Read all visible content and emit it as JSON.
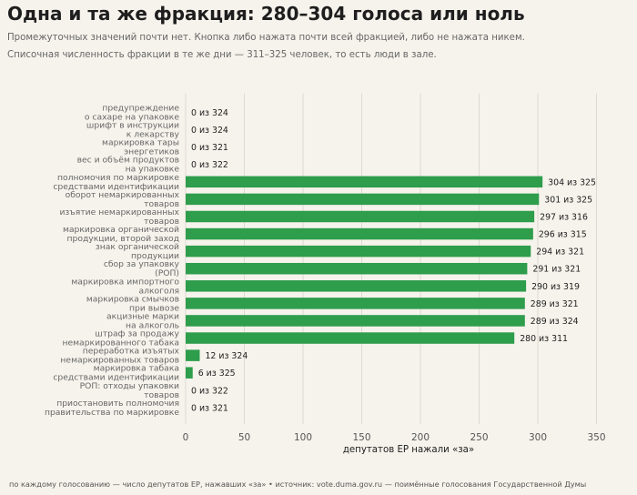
{
  "header": {
    "title": "Одна и та же фракция: 280–304 голоса или ноль",
    "subtitle_1": "Промежуточных значений почти нет. Кнопка либо нажата почти всей фракцией, либо не нажата никем.",
    "subtitle_2": "Списочная численность фракции в те же дни — 311–325 человек, то есть люди в зале."
  },
  "footer": {
    "source": "по каждому голосованию — число депутатов ЕР, нажавших «за» • источник: vote.duma.gov.ru — поимённые голосования Государственной Думы"
  },
  "colors": {
    "bar": "#2e9d4c",
    "grid": "#dddad2",
    "background": "#f6f3ec"
  },
  "chart_data": {
    "type": "bar",
    "orientation": "horizontal",
    "xlabel": "депутатов ЕР нажали «за»",
    "xlim": [
      0,
      360
    ],
    "xticks": [
      0,
      50,
      100,
      150,
      200,
      250,
      300,
      350
    ],
    "grid": true,
    "categories": [
      [
        "предупреждение",
        "о сахаре на упаковке"
      ],
      [
        "шрифт в инструкции",
        "к лекарству"
      ],
      [
        "маркировка тары",
        "энергетиков"
      ],
      [
        "вес и объём продуктов",
        "на упаковке"
      ],
      [
        "полномочия по маркировке",
        "средствами идентификации"
      ],
      [
        "оборот немаркированных",
        "товаров"
      ],
      [
        "изъятие немаркированных",
        "товаров"
      ],
      [
        "маркировка органической",
        "продукции, второй заход"
      ],
      [
        "знак органической",
        "продукции"
      ],
      [
        "сбор за упаковку",
        "(РОП)"
      ],
      [
        "маркировка импортного",
        "алкоголя"
      ],
      [
        "маркировка смычков",
        "при вывозе"
      ],
      [
        "акцизные марки",
        "на алкоголь"
      ],
      [
        "штраф за продажу",
        "немаркированного табака"
      ],
      [
        "переработка изъятых",
        "немаркированных товаров"
      ],
      [
        "маркировка табака",
        "средствами идентификации"
      ],
      [
        "РОП: отходы упаковки",
        "товаров"
      ],
      [
        "приостановить полномочия",
        "правительства по маркировке"
      ]
    ],
    "values": [
      0,
      0,
      0,
      0,
      304,
      301,
      297,
      296,
      294,
      291,
      290,
      289,
      289,
      280,
      12,
      6,
      0,
      0
    ],
    "data_labels": [
      "0 из 324",
      "0 из 324",
      "0 из 321",
      "0 из 322",
      "304 из 325",
      "301 из 325",
      "297 из 316",
      "296 из 315",
      "294 из 321",
      "291 из 321",
      "290 из 319",
      "289 из 321",
      "289 из 324",
      "280 из 311",
      "12 из 324",
      "6 из 325",
      "0 из 322",
      "0 из 321"
    ]
  }
}
